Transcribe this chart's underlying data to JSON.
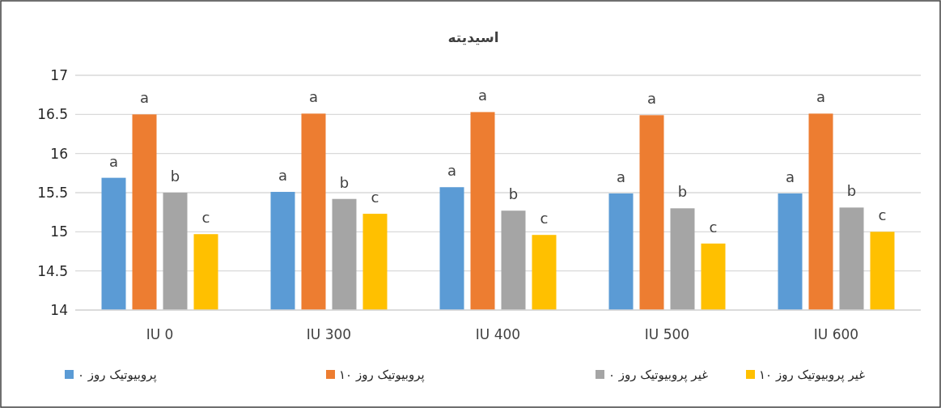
{
  "chart_data": {
    "type": "bar",
    "title": "اسیدیته",
    "categories": [
      "IU 0",
      "IU 300",
      "IU 400",
      "IU 500",
      "IU 600"
    ],
    "series": [
      {
        "name": "پروبیوتیک روز ۰",
        "color": "#5b9bd5",
        "values": [
          15.69,
          15.51,
          15.57,
          15.49,
          15.49
        ]
      },
      {
        "name": "پروبیوتیک روز ۱۰",
        "color": "#ed7d31",
        "values": [
          16.5,
          16.51,
          16.53,
          16.49,
          16.51
        ]
      },
      {
        "name": "غیر پروبیوتیک روز ۰",
        "color": "#a5a5a5",
        "values": [
          15.5,
          15.42,
          15.27,
          15.3,
          15.31
        ]
      },
      {
        "name": "غیر پروبیوتیک روز ۱۰",
        "color": "#ffc000",
        "values": [
          14.97,
          15.23,
          14.96,
          14.85,
          15.0
        ]
      }
    ],
    "annotations": [
      {
        "text": "a",
        "x": "IU 0",
        "y": 15.69
      },
      {
        "text": "a",
        "x": "IU 0",
        "y": 16.5
      },
      {
        "text": "b",
        "x": "IU 0",
        "y": 15.5
      },
      {
        "text": "c",
        "x": "IU 0",
        "y": 14.97
      },
      {
        "text": "a",
        "x": "IU 300",
        "y": 15.51
      },
      {
        "text": "a",
        "x": "IU 300",
        "y": 16.51
      },
      {
        "text": "b",
        "x": "IU 300",
        "y": 15.42
      },
      {
        "text": "c",
        "x": "IU 300",
        "y": 15.23
      },
      {
        "text": "a",
        "x": "IU 400",
        "y": 15.57
      },
      {
        "text": "a",
        "x": "IU 400",
        "y": 16.53
      },
      {
        "text": "b",
        "x": "IU 400",
        "y": 15.27
      },
      {
        "text": "c",
        "x": "IU 400",
        "y": 14.96
      },
      {
        "text": "a",
        "x": "IU 500",
        "y": 15.49
      },
      {
        "text": "a",
        "x": "IU 500",
        "y": 16.49
      },
      {
        "text": "b",
        "x": "IU 500",
        "y": 15.3
      },
      {
        "text": "c",
        "x": "IU 500",
        "y": 14.85
      },
      {
        "text": "a",
        "x": "IU 600",
        "y": 15.49
      },
      {
        "text": "a",
        "x": "IU 600",
        "y": 16.51
      },
      {
        "text": "b",
        "x": "IU 600",
        "y": 15.31
      },
      {
        "text": "c",
        "x": "IU 600",
        "y": 15.0
      }
    ],
    "ylim": [
      14,
      17
    ],
    "yticks": [
      14,
      14.5,
      15,
      15.5,
      16,
      16.5,
      17
    ],
    "grid": "y",
    "legend": "bottom"
  }
}
